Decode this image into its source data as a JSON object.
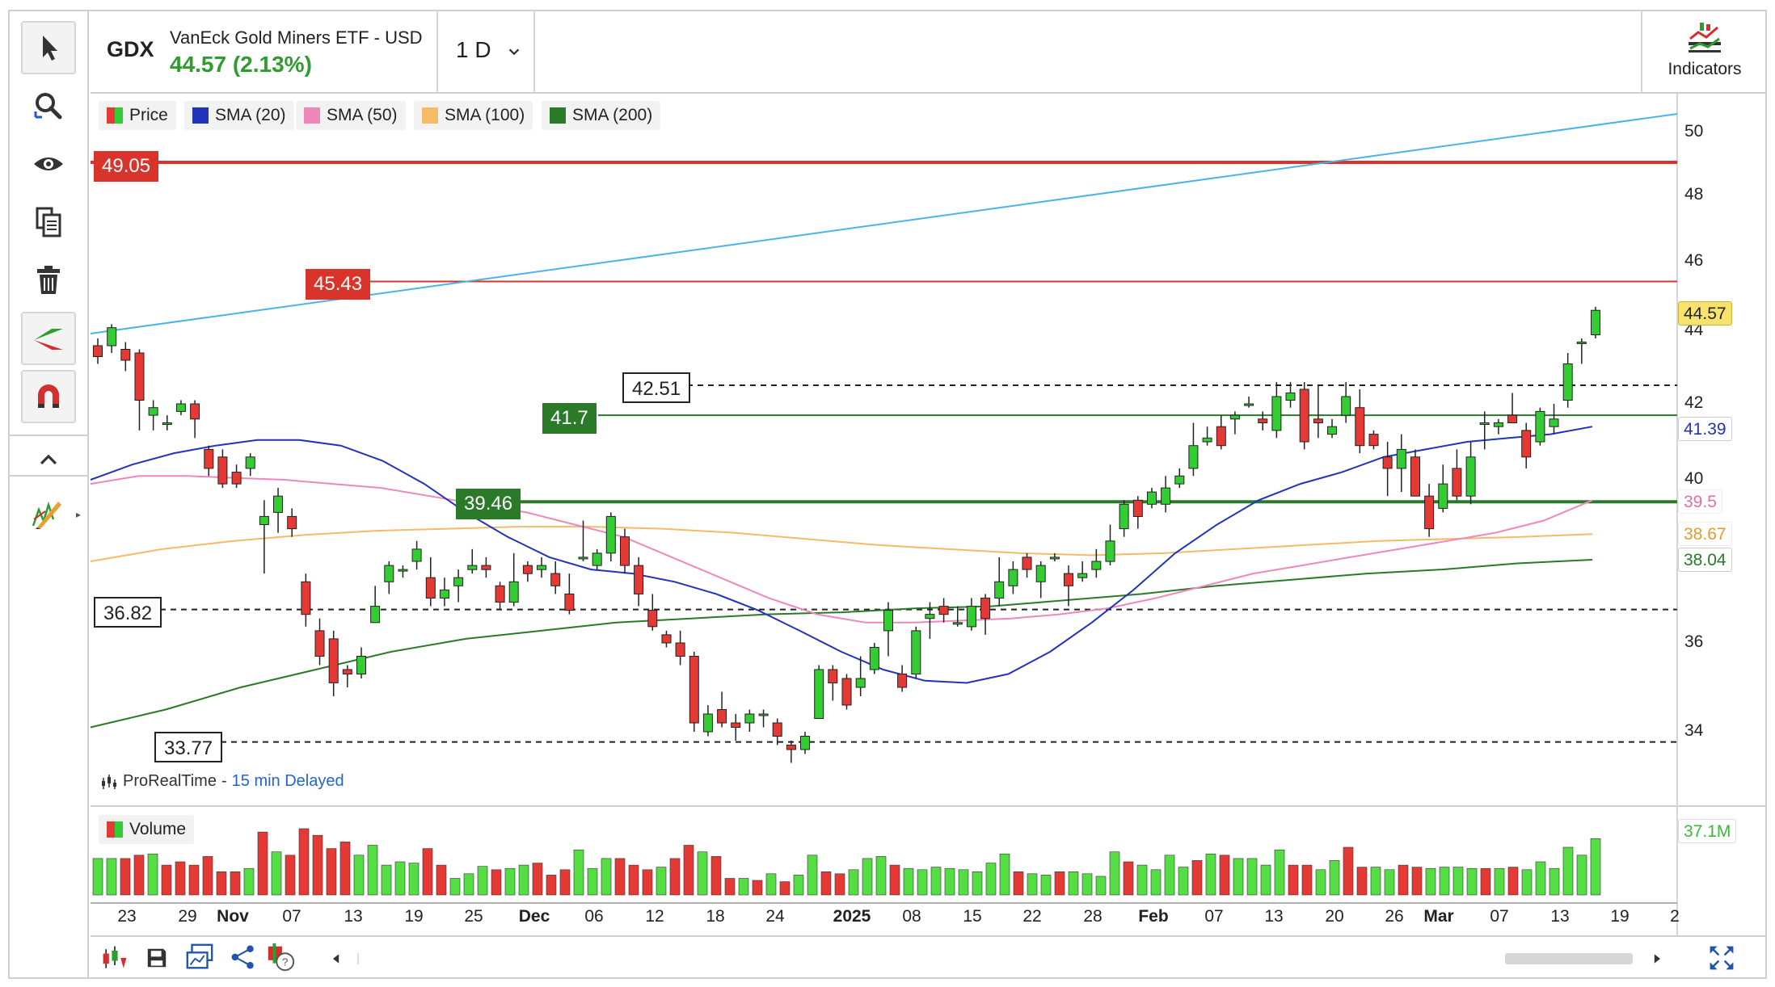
{
  "header": {
    "symbol": "GDX",
    "instrument_name": "VanEck Gold Miners ETF - USD",
    "price_change": "44.57 (2.13%)",
    "timeframe": "1 D",
    "indicators_label": "Indicators",
    "price_color": "#2e9c2e"
  },
  "toolbar": {
    "tools": [
      "cursor-icon",
      "zoom-icon",
      "eye-icon",
      "copy-icon",
      "trash-icon",
      "trendline-icon",
      "magnet-icon",
      "collapse-icon",
      "drawing-pen-icon"
    ]
  },
  "legend": {
    "items": [
      {
        "label": "Price",
        "color": "#33cc33"
      },
      {
        "label": "SMA (20)",
        "color": "#2233bb"
      },
      {
        "label": "SMA (50)",
        "color": "#ee88bb"
      },
      {
        "label": "SMA (100)",
        "color": "#f5bb66"
      },
      {
        "label": "SMA (200)",
        "color": "#2a7a2a"
      }
    ],
    "volume_label": "Volume",
    "source_label": "ProRealTime",
    "source_sep": "-",
    "delay_label": "15 min Delayed"
  },
  "levels": {
    "resistance_high": "49.05",
    "resistance": "45.43",
    "dashed_high": "42.51",
    "support_green": "41.7",
    "support_green2": "39.46",
    "dashed_mid": "36.82",
    "dashed_low": "33.77"
  },
  "axis_labels": {
    "last_price": "44.57",
    "sma20": "41.39",
    "sma50": "39.5",
    "sma100": "38.67",
    "sma200": "38.04",
    "volume_last": "37.1M"
  },
  "chart_data": {
    "type": "candlestick",
    "title": "GDX",
    "ylim": [
      32.5,
      51.0
    ],
    "y_ticks": [
      "50",
      "48",
      "46",
      "44",
      "42",
      "40",
      "36",
      "34"
    ],
    "x_ticks": [
      {
        "label": "23",
        "bold": false
      },
      {
        "label": "29",
        "bold": false
      },
      {
        "label": "Nov",
        "bold": true
      },
      {
        "label": "07",
        "bold": false
      },
      {
        "label": "13",
        "bold": false
      },
      {
        "label": "19",
        "bold": false
      },
      {
        "label": "25",
        "bold": false
      },
      {
        "label": "Dec",
        "bold": true
      },
      {
        "label": "06",
        "bold": false
      },
      {
        "label": "12",
        "bold": false
      },
      {
        "label": "18",
        "bold": false
      },
      {
        "label": "24",
        "bold": false
      },
      {
        "label": "2025",
        "bold": true
      },
      {
        "label": "08",
        "bold": false
      },
      {
        "label": "15",
        "bold": false
      },
      {
        "label": "22",
        "bold": false
      },
      {
        "label": "28",
        "bold": false
      },
      {
        "label": "Feb",
        "bold": true
      },
      {
        "label": "07",
        "bold": false
      },
      {
        "label": "13",
        "bold": false
      },
      {
        "label": "20",
        "bold": false
      },
      {
        "label": "26",
        "bold": false
      },
      {
        "label": "Mar",
        "bold": true
      },
      {
        "label": "07",
        "bold": false
      },
      {
        "label": "13",
        "bold": false
      },
      {
        "label": "19",
        "bold": false
      },
      {
        "label": "2",
        "bold": false
      }
    ],
    "candles": [
      [
        43.6,
        43.3,
        43.8,
        43.1
      ],
      [
        43.6,
        44.1,
        44.2,
        43.4
      ],
      [
        43.5,
        43.2,
        43.7,
        42.9
      ],
      [
        43.4,
        42.1,
        43.5,
        41.3
      ],
      [
        41.7,
        41.9,
        42.1,
        41.3
      ],
      [
        41.5,
        41.5,
        41.7,
        41.3
      ],
      [
        41.8,
        42.0,
        42.1,
        41.7
      ],
      [
        42.0,
        41.6,
        42.1,
        41.1
      ],
      [
        40.8,
        40.3,
        40.9,
        40.1
      ],
      [
        40.6,
        39.9,
        40.8,
        39.8
      ],
      [
        40.2,
        39.9,
        40.4,
        39.8
      ],
      [
        40.3,
        40.6,
        40.7,
        40.1
      ],
      [
        38.9,
        39.1,
        39.5,
        37.7
      ],
      [
        39.2,
        39.6,
        39.8,
        38.7
      ],
      [
        39.1,
        38.8,
        39.3,
        38.6
      ],
      [
        37.5,
        36.7,
        37.7,
        36.4
      ],
      [
        36.3,
        35.7,
        36.6,
        35.5
      ],
      [
        36.1,
        35.1,
        36.3,
        34.8
      ],
      [
        35.4,
        35.3,
        35.5,
        35.0
      ],
      [
        35.3,
        35.7,
        35.9,
        35.2
      ],
      [
        36.5,
        36.9,
        37.4,
        36.5
      ],
      [
        37.5,
        37.9,
        38.0,
        37.2
      ],
      [
        37.8,
        37.8,
        37.9,
        37.6
      ],
      [
        38.0,
        38.3,
        38.5,
        37.8
      ],
      [
        37.6,
        37.1,
        38.1,
        36.9
      ],
      [
        37.1,
        37.3,
        37.6,
        36.9
      ],
      [
        37.4,
        37.6,
        37.8,
        37.0
      ],
      [
        37.8,
        37.9,
        38.3,
        37.7
      ],
      [
        37.9,
        37.8,
        38.1,
        37.6
      ],
      [
        37.4,
        37.0,
        37.5,
        36.8
      ],
      [
        37.0,
        37.5,
        38.2,
        36.9
      ],
      [
        37.9,
        37.7,
        38.0,
        37.5
      ],
      [
        37.8,
        37.9,
        38.1,
        37.6
      ],
      [
        37.7,
        37.4,
        38.0,
        37.2
      ],
      [
        37.2,
        36.8,
        37.7,
        36.7
      ],
      [
        38.1,
        38.1,
        39.0,
        38.0
      ],
      [
        37.9,
        38.2,
        38.3,
        37.8
      ],
      [
        38.2,
        39.1,
        39.2,
        38.0
      ],
      [
        38.6,
        37.9,
        38.8,
        37.7
      ],
      [
        37.9,
        37.2,
        38.1,
        36.9
      ],
      [
        36.8,
        36.4,
        37.2,
        36.3
      ],
      [
        36.2,
        36.0,
        36.3,
        35.9
      ],
      [
        36.0,
        35.7,
        36.3,
        35.5
      ],
      [
        35.7,
        34.2,
        35.8,
        34.0
      ],
      [
        34.0,
        34.4,
        34.6,
        33.9
      ],
      [
        34.5,
        34.2,
        34.9,
        34.1
      ],
      [
        34.2,
        34.1,
        34.4,
        33.8
      ],
      [
        34.2,
        34.4,
        34.5,
        34.0
      ],
      [
        34.4,
        34.4,
        34.5,
        34.1
      ],
      [
        34.2,
        33.9,
        34.3,
        33.7
      ],
      [
        33.7,
        33.6,
        33.8,
        33.3
      ],
      [
        33.6,
        33.9,
        34.0,
        33.5
      ],
      [
        34.3,
        35.4,
        35.5,
        34.3
      ],
      [
        35.4,
        35.1,
        35.5,
        34.7
      ],
      [
        35.2,
        34.6,
        35.3,
        34.5
      ],
      [
        35.0,
        35.2,
        35.7,
        34.8
      ],
      [
        35.4,
        35.9,
        36.0,
        35.3
      ],
      [
        36.3,
        36.8,
        37.0,
        35.7
      ],
      [
        35.3,
        35.0,
        35.5,
        34.9
      ],
      [
        35.3,
        36.3,
        36.4,
        35.2
      ],
      [
        36.6,
        36.7,
        37.0,
        36.1
      ],
      [
        36.9,
        36.7,
        37.1,
        36.5
      ],
      [
        36.5,
        36.5,
        36.9,
        36.4
      ],
      [
        36.4,
        36.9,
        37.1,
        36.3
      ],
      [
        37.1,
        36.6,
        37.2,
        36.2
      ],
      [
        37.1,
        37.5,
        38.1,
        36.9
      ],
      [
        37.4,
        37.8,
        38.0,
        37.2
      ],
      [
        38.1,
        37.8,
        38.2,
        37.6
      ],
      [
        37.5,
        37.9,
        38.0,
        37.1
      ],
      [
        38.1,
        38.1,
        38.2,
        38.0
      ],
      [
        37.7,
        37.4,
        37.9,
        36.9
      ],
      [
        37.6,
        37.7,
        38.0,
        37.5
      ],
      [
        37.8,
        38.0,
        38.3,
        37.6
      ],
      [
        38.0,
        38.5,
        38.9,
        37.9
      ],
      [
        38.8,
        39.4,
        39.5,
        38.6
      ],
      [
        39.5,
        39.1,
        39.6,
        38.8
      ],
      [
        39.4,
        39.7,
        39.8,
        39.3
      ],
      [
        39.4,
        39.8,
        40.1,
        39.2
      ],
      [
        39.9,
        40.1,
        40.3,
        39.8
      ],
      [
        40.3,
        40.9,
        41.5,
        40.1
      ],
      [
        41.0,
        41.1,
        41.4,
        40.9
      ],
      [
        41.4,
        40.9,
        41.7,
        40.8
      ],
      [
        41.6,
        41.7,
        41.8,
        41.2
      ],
      [
        42.0,
        42.0,
        42.2,
        41.9
      ],
      [
        41.6,
        41.5,
        41.8,
        41.3
      ],
      [
        41.3,
        42.2,
        42.6,
        41.1
      ],
      [
        42.1,
        42.3,
        42.6,
        41.9
      ],
      [
        42.4,
        41.0,
        42.6,
        40.8
      ],
      [
        41.6,
        41.5,
        42.5,
        41.1
      ],
      [
        41.2,
        41.4,
        41.6,
        41.1
      ],
      [
        41.7,
        42.2,
        42.6,
        41.5
      ],
      [
        41.9,
        40.9,
        42.4,
        40.7
      ],
      [
        41.2,
        40.9,
        41.3,
        40.8
      ],
      [
        40.6,
        40.3,
        41.0,
        39.6
      ],
      [
        40.3,
        40.8,
        41.2,
        39.7
      ],
      [
        40.6,
        39.6,
        40.8,
        39.6
      ],
      [
        39.6,
        38.8,
        39.9,
        38.6
      ],
      [
        39.3,
        39.9,
        40.4,
        39.2
      ],
      [
        40.3,
        39.6,
        40.8,
        39.5
      ],
      [
        39.6,
        40.6,
        41.0,
        39.4
      ],
      [
        41.5,
        41.5,
        41.8,
        40.8
      ],
      [
        41.4,
        41.5,
        41.6,
        41.2
      ],
      [
        41.7,
        41.5,
        42.3,
        41.5
      ],
      [
        41.3,
        40.6,
        41.5,
        40.3
      ],
      [
        41.0,
        41.8,
        41.9,
        40.9
      ],
      [
        41.4,
        41.6,
        42.0,
        41.2
      ],
      [
        42.1,
        43.1,
        43.4,
        41.9
      ],
      [
        43.7,
        43.7,
        43.8,
        43.1
      ],
      [
        43.9,
        44.6,
        44.7,
        43.8
      ]
    ],
    "sma20": [
      40.0,
      40.4,
      40.7,
      40.9,
      41.05,
      41.05,
      40.9,
      40.5,
      39.9,
      39.2,
      38.6,
      38.1,
      37.8,
      37.7,
      37.5,
      37.2,
      36.8,
      36.3,
      35.8,
      35.4,
      35.15,
      35.1,
      35.3,
      35.8,
      36.5,
      37.3,
      38.2,
      38.9,
      39.5,
      39.9,
      40.2,
      40.6,
      40.8,
      41.0,
      41.1,
      41.2,
      41.4
    ],
    "sma50": [
      39.9,
      40.1,
      40.1,
      40.05,
      40.0,
      39.9,
      39.8,
      39.6,
      39.4,
      39.2,
      38.9,
      38.6,
      38.1,
      37.6,
      37.1,
      36.7,
      36.5,
      36.5,
      36.55,
      36.6,
      36.7,
      36.85,
      37.1,
      37.4,
      37.7,
      37.9,
      38.1,
      38.3,
      38.5,
      38.7,
      39.0,
      39.5
    ],
    "sma100": [
      38.0,
      38.3,
      38.5,
      38.65,
      38.75,
      38.8,
      38.85,
      38.85,
      38.8,
      38.7,
      38.55,
      38.4,
      38.3,
      38.2,
      38.15,
      38.2,
      38.3,
      38.4,
      38.5,
      38.55,
      38.6,
      38.67
    ],
    "sma200": [
      34.1,
      34.5,
      35.0,
      35.4,
      35.8,
      36.1,
      36.3,
      36.5,
      36.6,
      36.7,
      36.75,
      36.85,
      36.9,
      37.05,
      37.2,
      37.4,
      37.55,
      37.7,
      37.8,
      37.95,
      38.04
    ],
    "volume": [
      [
        55,
        "g"
      ],
      [
        55,
        "g"
      ],
      [
        55,
        "r"
      ],
      [
        60,
        "r"
      ],
      [
        62,
        "g"
      ],
      [
        45,
        "r"
      ],
      [
        50,
        "r"
      ],
      [
        45,
        "r"
      ],
      [
        58,
        "r"
      ],
      [
        35,
        "r"
      ],
      [
        35,
        "r"
      ],
      [
        40,
        "g"
      ],
      [
        95,
        "r"
      ],
      [
        65,
        "g"
      ],
      [
        60,
        "r"
      ],
      [
        100,
        "r"
      ],
      [
        90,
        "r"
      ],
      [
        70,
        "r"
      ],
      [
        80,
        "r"
      ],
      [
        60,
        "g"
      ],
      [
        75,
        "g"
      ],
      [
        45,
        "g"
      ],
      [
        50,
        "g"
      ],
      [
        48,
        "g"
      ],
      [
        70,
        "r"
      ],
      [
        45,
        "r"
      ],
      [
        25,
        "g"
      ],
      [
        32,
        "g"
      ],
      [
        43,
        "g"
      ],
      [
        38,
        "r"
      ],
      [
        40,
        "g"
      ],
      [
        45,
        "g"
      ],
      [
        48,
        "r"
      ],
      [
        30,
        "r"
      ],
      [
        38,
        "r"
      ],
      [
        68,
        "g"
      ],
      [
        40,
        "g"
      ],
      [
        55,
        "g"
      ],
      [
        55,
        "r"
      ],
      [
        45,
        "r"
      ],
      [
        38,
        "r"
      ],
      [
        42,
        "g"
      ],
      [
        55,
        "r"
      ],
      [
        75,
        "r"
      ],
      [
        65,
        "g"
      ],
      [
        58,
        "r"
      ],
      [
        25,
        "r"
      ],
      [
        25,
        "g"
      ],
      [
        22,
        "r"
      ],
      [
        32,
        "g"
      ],
      [
        20,
        "r"
      ],
      [
        30,
        "g"
      ],
      [
        60,
        "g"
      ],
      [
        35,
        "r"
      ],
      [
        32,
        "r"
      ],
      [
        38,
        "g"
      ],
      [
        55,
        "g"
      ],
      [
        58,
        "g"
      ],
      [
        45,
        "r"
      ],
      [
        40,
        "g"
      ],
      [
        38,
        "g"
      ],
      [
        42,
        "g"
      ],
      [
        40,
        "g"
      ],
      [
        38,
        "g"
      ],
      [
        35,
        "g"
      ],
      [
        48,
        "g"
      ],
      [
        62,
        "g"
      ],
      [
        35,
        "r"
      ],
      [
        32,
        "g"
      ],
      [
        30,
        "g"
      ],
      [
        35,
        "r"
      ],
      [
        35,
        "g"
      ],
      [
        32,
        "g"
      ],
      [
        28,
        "g"
      ],
      [
        65,
        "g"
      ],
      [
        50,
        "r"
      ],
      [
        45,
        "g"
      ],
      [
        38,
        "g"
      ],
      [
        60,
        "g"
      ],
      [
        42,
        "g"
      ],
      [
        52,
        "r"
      ],
      [
        62,
        "g"
      ],
      [
        60,
        "r"
      ],
      [
        55,
        "g"
      ],
      [
        55,
        "g"
      ],
      [
        45,
        "g"
      ],
      [
        68,
        "g"
      ],
      [
        45,
        "r"
      ],
      [
        45,
        "r"
      ],
      [
        38,
        "g"
      ],
      [
        52,
        "g"
      ],
      [
        72,
        "r"
      ],
      [
        42,
        "r"
      ],
      [
        42,
        "g"
      ],
      [
        38,
        "g"
      ],
      [
        45,
        "r"
      ],
      [
        42,
        "r"
      ],
      [
        40,
        "g"
      ],
      [
        42,
        "g"
      ],
      [
        42,
        "g"
      ],
      [
        40,
        "g"
      ],
      [
        40,
        "r"
      ],
      [
        40,
        "g"
      ],
      [
        42,
        "r"
      ],
      [
        38,
        "g"
      ],
      [
        50,
        "g"
      ],
      [
        40,
        "g"
      ],
      [
        72,
        "g"
      ],
      [
        60,
        "g"
      ],
      [
        85,
        "g"
      ]
    ]
  }
}
